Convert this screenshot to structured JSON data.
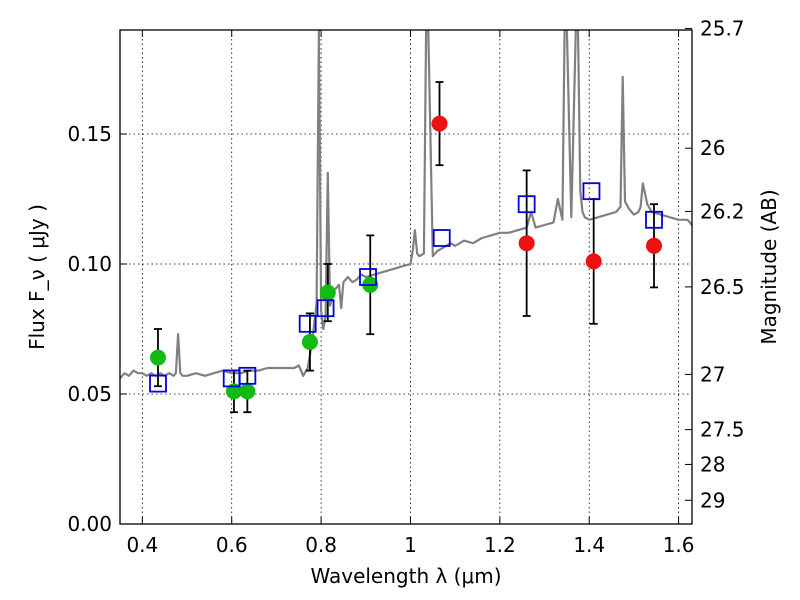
{
  "chart_data": {
    "type": "scatter",
    "title": "",
    "xlabel": "Wavelength  λ (μm)",
    "ylabel": "Flux  F_ν  ( μJy )",
    "ylabel_right": "Magnitude (AB)",
    "xlim": [
      0.35,
      1.63
    ],
    "ylim": [
      0.0,
      0.19
    ],
    "grid": true,
    "xticks": [
      {
        "value": 0.4,
        "label": "0.4"
      },
      {
        "value": 0.6,
        "label": "0.6"
      },
      {
        "value": 0.8,
        "label": "0.8"
      },
      {
        "value": 1.0,
        "label": "1"
      },
      {
        "value": 1.2,
        "label": "1.2"
      },
      {
        "value": 1.4,
        "label": "1.4"
      },
      {
        "value": 1.6,
        "label": "1.6"
      }
    ],
    "yticks": [
      {
        "value": 0.0,
        "label": "0.00"
      },
      {
        "value": 0.05,
        "label": "0.05"
      },
      {
        "value": 0.1,
        "label": "0.10"
      },
      {
        "value": 0.15,
        "label": "0.15"
      }
    ],
    "mag_ticks": [
      {
        "value": 25.7,
        "label": "25.7"
      },
      {
        "value": 26.0,
        "label": "26"
      },
      {
        "value": 26.2,
        "label": "26.2"
      },
      {
        "value": 26.5,
        "label": "26.5"
      },
      {
        "value": 27.0,
        "label": "27"
      },
      {
        "value": 27.5,
        "label": "27.5"
      },
      {
        "value": 28.0,
        "label": "28"
      },
      {
        "value": 29.0,
        "label": "29"
      }
    ],
    "colors": {
      "spectrum": "#808080",
      "green_points": "#11bb11",
      "red_points": "#ee1111",
      "model_squares": "#0000dd",
      "errorbars": "#000000",
      "grid": "#000000"
    },
    "series": [
      {
        "kind": "spectrum",
        "x": [
          0.35,
          0.36,
          0.37,
          0.38,
          0.39,
          0.4,
          0.41,
          0.42,
          0.43,
          0.44,
          0.45,
          0.46,
          0.47,
          0.475,
          0.48,
          0.485,
          0.49,
          0.5,
          0.52,
          0.54,
          0.56,
          0.58,
          0.6,
          0.62,
          0.64,
          0.66,
          0.68,
          0.7,
          0.72,
          0.74,
          0.75,
          0.76,
          0.77,
          0.78,
          0.79,
          0.795,
          0.8,
          0.805,
          0.81,
          0.815,
          0.82,
          0.83,
          0.84,
          0.845,
          0.85,
          0.86,
          0.87,
          0.88,
          0.89,
          0.9,
          0.92,
          0.94,
          0.96,
          0.98,
          1.0,
          1.005,
          1.01,
          1.015,
          1.02,
          1.03,
          1.035,
          1.04,
          1.05,
          1.06,
          1.07,
          1.08,
          1.09,
          1.1,
          1.12,
          1.14,
          1.16,
          1.18,
          1.2,
          1.22,
          1.24,
          1.26,
          1.27,
          1.28,
          1.3,
          1.32,
          1.33,
          1.34,
          1.345,
          1.35,
          1.36,
          1.37,
          1.375,
          1.38,
          1.385,
          1.39,
          1.4,
          1.42,
          1.44,
          1.46,
          1.47,
          1.475,
          1.48,
          1.49,
          1.5,
          1.51,
          1.515,
          1.52,
          1.53,
          1.54,
          1.56,
          1.58,
          1.6,
          1.62,
          1.63
        ],
        "y": [
          0.056,
          0.058,
          0.057,
          0.059,
          0.058,
          0.058,
          0.057,
          0.058,
          0.057,
          0.058,
          0.057,
          0.058,
          0.057,
          0.058,
          0.073,
          0.058,
          0.057,
          0.057,
          0.058,
          0.057,
          0.058,
          0.059,
          0.058,
          0.058,
          0.059,
          0.059,
          0.06,
          0.06,
          0.06,
          0.06,
          0.061,
          0.057,
          0.06,
          0.07,
          0.085,
          0.19,
          0.082,
          0.075,
          0.08,
          0.135,
          0.084,
          0.09,
          0.092,
          0.083,
          0.093,
          0.095,
          0.093,
          0.094,
          0.096,
          0.095,
          0.096,
          0.097,
          0.098,
          0.099,
          0.1,
          0.105,
          0.113,
          0.104,
          0.103,
          0.104,
          0.19,
          0.19,
          0.103,
          0.105,
          0.106,
          0.107,
          0.108,
          0.107,
          0.109,
          0.108,
          0.11,
          0.111,
          0.112,
          0.112,
          0.113,
          0.114,
          0.12,
          0.114,
          0.115,
          0.116,
          0.125,
          0.117,
          0.19,
          0.19,
          0.118,
          0.19,
          0.19,
          0.128,
          0.12,
          0.118,
          0.117,
          0.118,
          0.119,
          0.12,
          0.122,
          0.172,
          0.124,
          0.121,
          0.119,
          0.12,
          0.122,
          0.131,
          0.123,
          0.12,
          0.119,
          0.118,
          0.117,
          0.117,
          0.115
        ]
      },
      {
        "kind": "observed_green",
        "points": [
          {
            "x": 0.435,
            "y": 0.064,
            "err": 0.011
          },
          {
            "x": 0.605,
            "y": 0.051,
            "err": 0.008
          },
          {
            "x": 0.635,
            "y": 0.051,
            "err": 0.008
          },
          {
            "x": 0.775,
            "y": 0.07,
            "err": 0.011
          },
          {
            "x": 0.815,
            "y": 0.089,
            "err": 0.011
          },
          {
            "x": 0.91,
            "y": 0.092,
            "err": 0.019
          }
        ]
      },
      {
        "kind": "observed_red",
        "points": [
          {
            "x": 1.065,
            "y": 0.154,
            "err": 0.016
          },
          {
            "x": 1.26,
            "y": 0.108,
            "err": 0.028
          },
          {
            "x": 1.41,
            "y": 0.101,
            "err": 0.024
          },
          {
            "x": 1.545,
            "y": 0.107,
            "err": 0.016
          }
        ]
      },
      {
        "kind": "model_squares",
        "points": [
          {
            "x": 0.435,
            "y": 0.054
          },
          {
            "x": 0.6,
            "y": 0.056
          },
          {
            "x": 0.635,
            "y": 0.057
          },
          {
            "x": 0.77,
            "y": 0.077
          },
          {
            "x": 0.81,
            "y": 0.083
          },
          {
            "x": 0.905,
            "y": 0.095
          },
          {
            "x": 1.07,
            "y": 0.11
          },
          {
            "x": 1.26,
            "y": 0.123
          },
          {
            "x": 1.405,
            "y": 0.128
          },
          {
            "x": 1.545,
            "y": 0.117
          }
        ]
      }
    ]
  }
}
